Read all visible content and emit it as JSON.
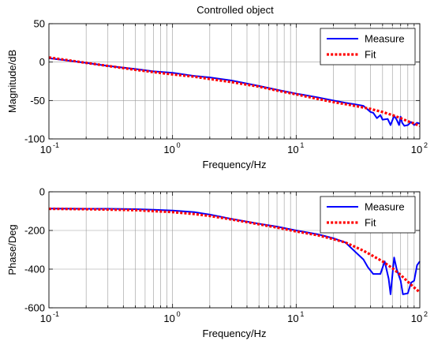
{
  "figure": {
    "title": "Controlled object"
  },
  "chart_data": [
    {
      "type": "line",
      "title": "Controlled object",
      "xlabel": "Frequency/Hz",
      "ylabel": "Magnitude/dB",
      "xscale": "log",
      "xlim": [
        0.1,
        100
      ],
      "ylim": [
        -100,
        50
      ],
      "xticks": [
        0.1,
        1,
        10,
        100
      ],
      "xtick_labels": [
        {
          "base": "10",
          "exp": "-1"
        },
        {
          "base": "10",
          "exp": "0"
        },
        {
          "base": "10",
          "exp": "1"
        },
        {
          "base": "10",
          "exp": "2"
        }
      ],
      "yticks": [
        50,
        0,
        -50,
        -100
      ],
      "ytick_labels": [
        "50",
        "0",
        "-50",
        "-100"
      ],
      "grid": true,
      "legend_position": "top-right",
      "series": [
        {
          "name": "Measure",
          "color": "#0000ff",
          "style": "solid",
          "points": [
            [
              0.1,
              5
            ],
            [
              0.2,
              -1
            ],
            [
              0.3,
              -5
            ],
            [
              0.5,
              -9
            ],
            [
              0.7,
              -12
            ],
            [
              1,
              -14
            ],
            [
              1.5,
              -18
            ],
            [
              2,
              -20
            ],
            [
              3,
              -24
            ],
            [
              5,
              -31
            ],
            [
              7,
              -36
            ],
            [
              10,
              -41
            ],
            [
              15,
              -46
            ],
            [
              20,
              -50
            ],
            [
              25,
              -53
            ],
            [
              30,
              -55
            ],
            [
              35,
              -57
            ],
            [
              40,
              -65
            ],
            [
              42,
              -66
            ],
            [
              45,
              -73
            ],
            [
              48,
              -69
            ],
            [
              50,
              -75
            ],
            [
              55,
              -74
            ],
            [
              58,
              -82
            ],
            [
              62,
              -70
            ],
            [
              65,
              -75
            ],
            [
              68,
              -82
            ],
            [
              70,
              -71
            ],
            [
              72,
              -79
            ],
            [
              75,
              -83
            ],
            [
              80,
              -82
            ],
            [
              85,
              -78
            ],
            [
              90,
              -82
            ],
            [
              95,
              -79
            ],
            [
              100,
              -80
            ]
          ]
        },
        {
          "name": "Fit",
          "color": "#ff0000",
          "style": "dotted",
          "points": [
            [
              0.1,
              6
            ],
            [
              0.2,
              -1
            ],
            [
              0.3,
              -5
            ],
            [
              0.5,
              -10
            ],
            [
              0.7,
              -13
            ],
            [
              1,
              -16
            ],
            [
              1.5,
              -19
            ],
            [
              2,
              -22
            ],
            [
              3,
              -26
            ],
            [
              5,
              -32
            ],
            [
              7,
              -37
            ],
            [
              10,
              -42
            ],
            [
              15,
              -48
            ],
            [
              20,
              -52
            ],
            [
              30,
              -57
            ],
            [
              40,
              -61
            ],
            [
              50,
              -65
            ],
            [
              60,
              -69
            ],
            [
              70,
              -73
            ],
            [
              80,
              -77
            ],
            [
              90,
              -80
            ],
            [
              100,
              -83
            ]
          ]
        }
      ]
    },
    {
      "type": "line",
      "title": "",
      "xlabel": "Frequency/Hz",
      "ylabel": "Phase/Deg",
      "xscale": "log",
      "xlim": [
        0.1,
        100
      ],
      "ylim": [
        -600,
        0
      ],
      "xticks": [
        0.1,
        1,
        10,
        100
      ],
      "xtick_labels": [
        {
          "base": "10",
          "exp": "-1"
        },
        {
          "base": "10",
          "exp": "0"
        },
        {
          "base": "10",
          "exp": "1"
        },
        {
          "base": "10",
          "exp": "2"
        }
      ],
      "yticks": [
        0,
        -200,
        -400,
        -600
      ],
      "ytick_labels": [
        "0",
        "-200",
        "-400",
        "-600"
      ],
      "grid": true,
      "legend_position": "top-right",
      "series": [
        {
          "name": "Measure",
          "color": "#0000ff",
          "style": "solid",
          "points": [
            [
              0.1,
              -87
            ],
            [
              0.2,
              -88
            ],
            [
              0.3,
              -88
            ],
            [
              0.5,
              -90
            ],
            [
              0.7,
              -93
            ],
            [
              1,
              -97
            ],
            [
              1.5,
              -105
            ],
            [
              2,
              -118
            ],
            [
              3,
              -140
            ],
            [
              5,
              -165
            ],
            [
              7,
              -180
            ],
            [
              10,
              -200
            ],
            [
              15,
              -220
            ],
            [
              20,
              -240
            ],
            [
              25,
              -262
            ],
            [
              30,
              -310
            ],
            [
              35,
              -350
            ],
            [
              38,
              -390
            ],
            [
              42,
              -425
            ],
            [
              48,
              -425
            ],
            [
              52,
              -360
            ],
            [
              56,
              -450
            ],
            [
              58,
              -530
            ],
            [
              62,
              -340
            ],
            [
              65,
              -400
            ],
            [
              70,
              -460
            ],
            [
              73,
              -530
            ],
            [
              80,
              -525
            ],
            [
              85,
              -470
            ],
            [
              90,
              -460
            ],
            [
              95,
              -380
            ],
            [
              100,
              -360
            ]
          ]
        },
        {
          "name": "Fit",
          "color": "#ff0000",
          "style": "dotted",
          "points": [
            [
              0.1,
              -88
            ],
            [
              0.2,
              -90
            ],
            [
              0.3,
              -92
            ],
            [
              0.5,
              -95
            ],
            [
              0.7,
              -100
            ],
            [
              1,
              -105
            ],
            [
              1.5,
              -115
            ],
            [
              2,
              -125
            ],
            [
              3,
              -143
            ],
            [
              5,
              -168
            ],
            [
              7,
              -185
            ],
            [
              10,
              -205
            ],
            [
              15,
              -225
            ],
            [
              20,
              -245
            ],
            [
              25,
              -262
            ],
            [
              30,
              -285
            ],
            [
              35,
              -305
            ],
            [
              40,
              -325
            ],
            [
              50,
              -360
            ],
            [
              60,
              -395
            ],
            [
              70,
              -430
            ],
            [
              80,
              -465
            ],
            [
              90,
              -495
            ],
            [
              100,
              -520
            ]
          ]
        }
      ]
    }
  ]
}
